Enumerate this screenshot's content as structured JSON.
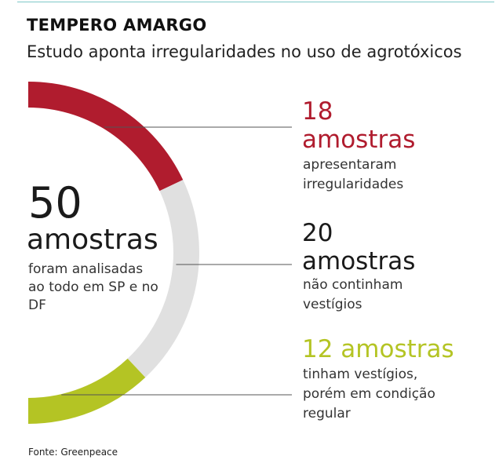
{
  "header": {
    "title": "TEMPERO AMARGO",
    "subtitle": "Estudo aponta irregularidades no uso de agrotóxicos"
  },
  "total": {
    "value": "50",
    "unit": "amostras",
    "description": "foram analisadas ao todo em SP e no DF"
  },
  "segments": [
    {
      "line1": "18",
      "line2": "amostras",
      "description": "apresentaram irregularidades",
      "color": "#b01c2e"
    },
    {
      "line1": "20",
      "line2": "amostras",
      "description": "não continham vestígios",
      "color": "#1a1a1a"
    },
    {
      "line1": "12 amostras",
      "description": "tinham vestígios, porém em condição regular",
      "color": "#b4c424"
    }
  ],
  "source": "Fonte: Greenpeace",
  "chart_data": {
    "type": "pie",
    "categories": [
      "apresentaram irregularidades",
      "não continham vestígios",
      "tinham vestígios, porém em condição regular"
    ],
    "values": [
      18,
      20,
      12
    ],
    "total": 50,
    "colors": [
      "#b01c2e",
      "#e0e0e0",
      "#b4c424"
    ]
  }
}
